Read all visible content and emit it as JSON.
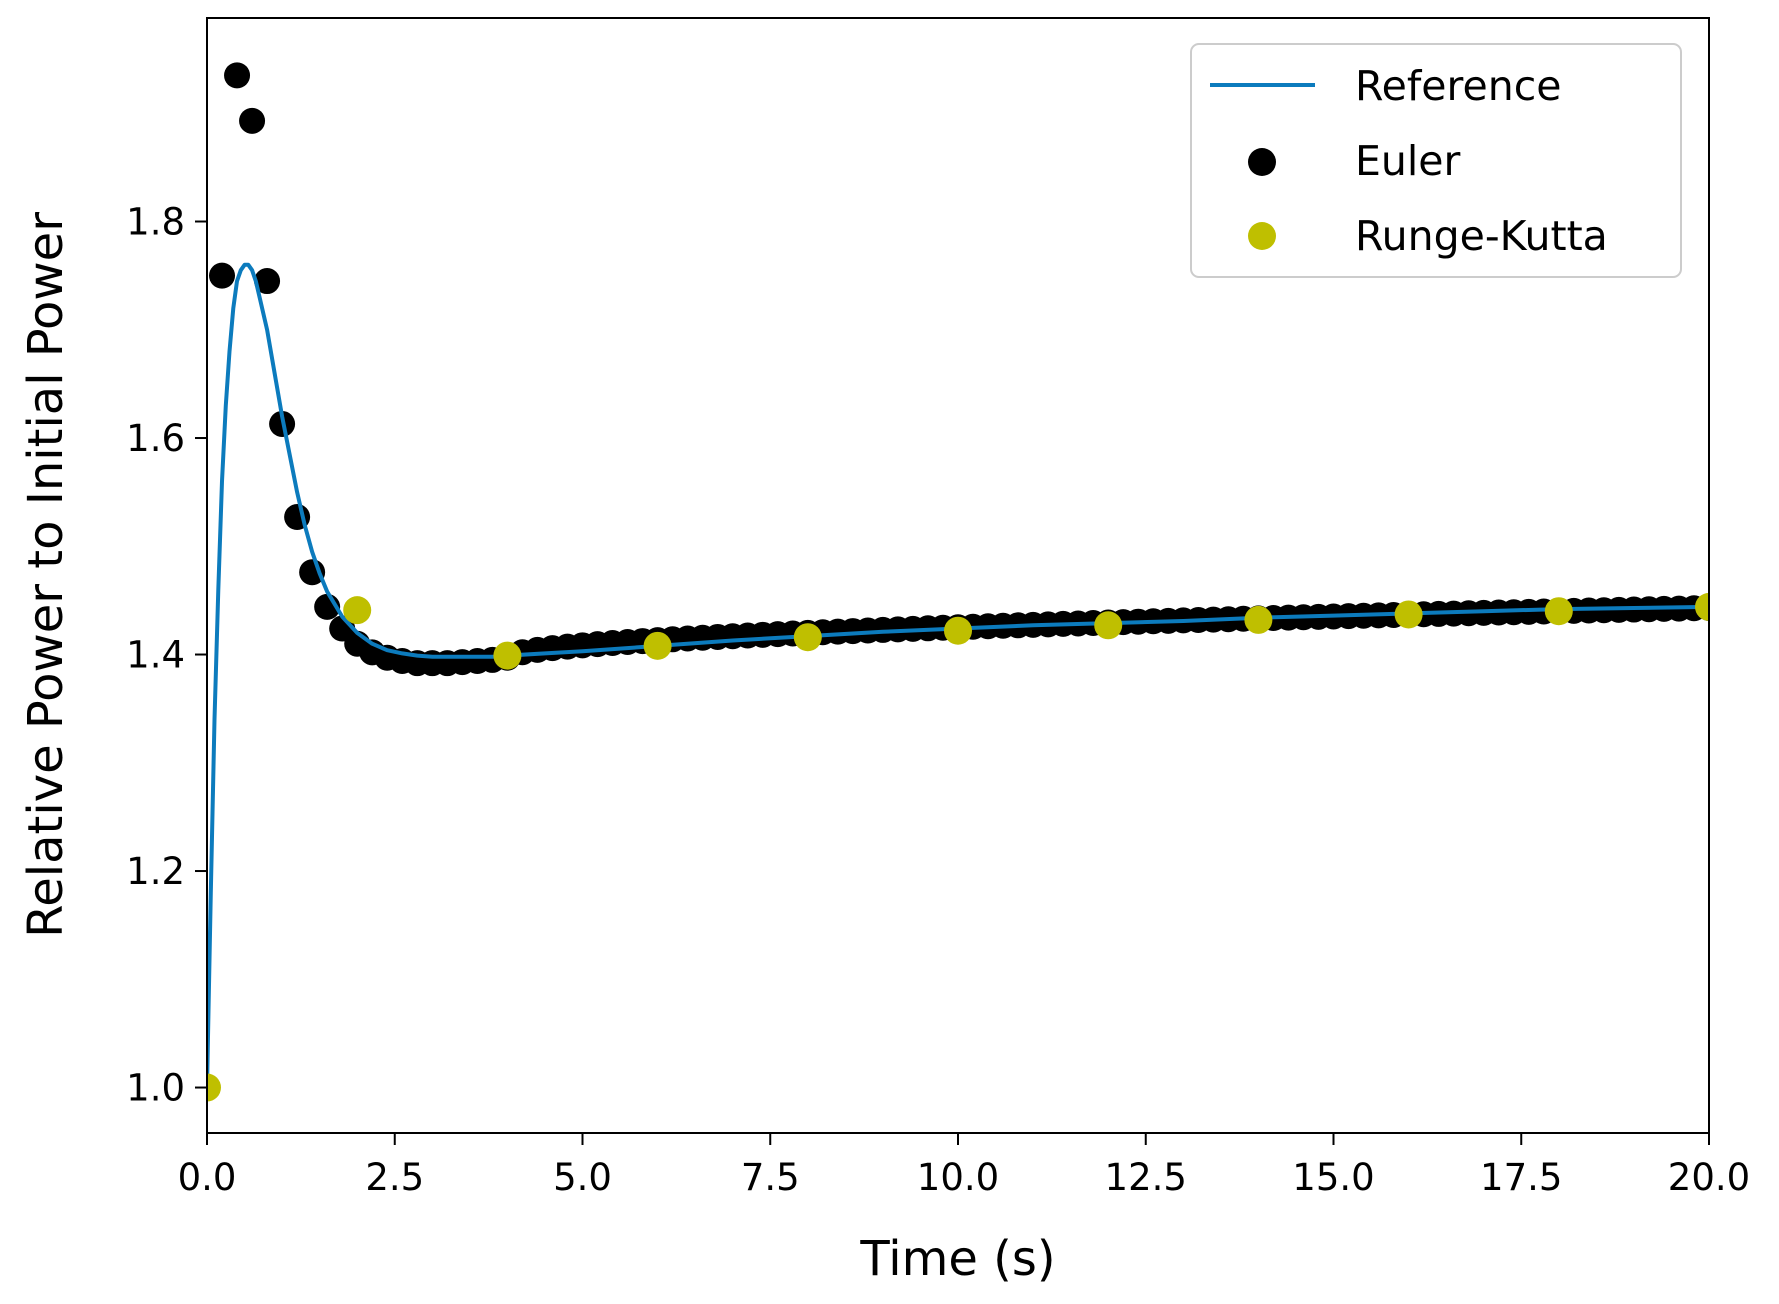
{
  "chart_data": {
    "type": "scatter",
    "title": "",
    "xlabel": "Time (s)",
    "ylabel": "Relative Power to Initial Power",
    "xlim": [
      0,
      20
    ],
    "ylim": [
      0.958,
      1.988
    ],
    "grid": false,
    "legend_position": "top-right",
    "xticks": [
      0,
      2.5,
      5,
      7.5,
      10,
      12.5,
      15,
      17.5,
      20
    ],
    "xtick_labels": [
      "0.0",
      "2.5",
      "5.0",
      "7.5",
      "10.0",
      "12.5",
      "15.0",
      "17.5",
      "20.0"
    ],
    "yticks": [
      1.0,
      1.2,
      1.4,
      1.6,
      1.8
    ],
    "ytick_labels": [
      "1.0",
      "1.2",
      "1.4",
      "1.6",
      "1.8"
    ],
    "colors": {
      "reference": "#0c7bbd",
      "euler": "#000000",
      "runge_kutta": "#bfbf00"
    },
    "series": [
      {
        "name": "Reference",
        "kind": "line",
        "x": [
          0,
          0.05,
          0.1,
          0.15,
          0.2,
          0.25,
          0.3,
          0.35,
          0.4,
          0.45,
          0.5,
          0.55,
          0.6,
          0.65,
          0.7,
          0.8,
          0.9,
          1.0,
          1.1,
          1.2,
          1.3,
          1.4,
          1.5,
          1.6,
          1.8,
          2.0,
          2.2,
          2.4,
          2.6,
          2.8,
          3.0,
          3.2,
          3.5,
          3.8,
          4.0,
          4.5,
          5,
          6,
          7,
          8,
          9,
          10,
          11,
          12,
          13,
          14,
          15,
          16,
          17,
          18,
          19,
          20
        ],
        "y": [
          1.0,
          1.18,
          1.34,
          1.46,
          1.56,
          1.63,
          1.68,
          1.72,
          1.745,
          1.755,
          1.76,
          1.76,
          1.755,
          1.745,
          1.73,
          1.7,
          1.66,
          1.62,
          1.585,
          1.55,
          1.52,
          1.495,
          1.475,
          1.458,
          1.435,
          1.42,
          1.41,
          1.404,
          1.401,
          1.399,
          1.398,
          1.398,
          1.398,
          1.398,
          1.399,
          1.401,
          1.403,
          1.408,
          1.413,
          1.417,
          1.421,
          1.424,
          1.427,
          1.429,
          1.431,
          1.434,
          1.436,
          1.438,
          1.44,
          1.442,
          1.443,
          1.444
        ]
      },
      {
        "name": "Euler",
        "kind": "scatter",
        "dt": 0.2,
        "x": [
          0,
          0.2,
          0.4,
          0.6,
          0.8,
          1.0,
          1.2,
          1.4,
          1.6,
          1.8,
          2.0,
          2.2,
          2.4,
          2.6,
          2.8,
          3.0,
          3.2,
          3.4,
          3.6,
          3.8
        ],
        "y": [
          1.0,
          1.75,
          1.935,
          1.893,
          1.745,
          1.613,
          1.527,
          1.476,
          1.444,
          1.424,
          1.41,
          1.402,
          1.397,
          1.394,
          1.392,
          1.392,
          1.392,
          1.393,
          1.394,
          1.395
        ],
        "tail_from": 4.0,
        "tail_to": 20.0,
        "tail_start_y": 1.397,
        "tail_end_y": 1.443
      },
      {
        "name": "Runge-Kutta",
        "kind": "scatter",
        "x": [
          0,
          2,
          4,
          6,
          8,
          10,
          12,
          14,
          16,
          18,
          20
        ],
        "y": [
          1.0,
          1.441,
          1.399,
          1.408,
          1.416,
          1.422,
          1.427,
          1.432,
          1.437,
          1.44,
          1.444
        ]
      }
    ],
    "legend": [
      "Reference",
      "Euler",
      "Runge-Kutta"
    ]
  }
}
